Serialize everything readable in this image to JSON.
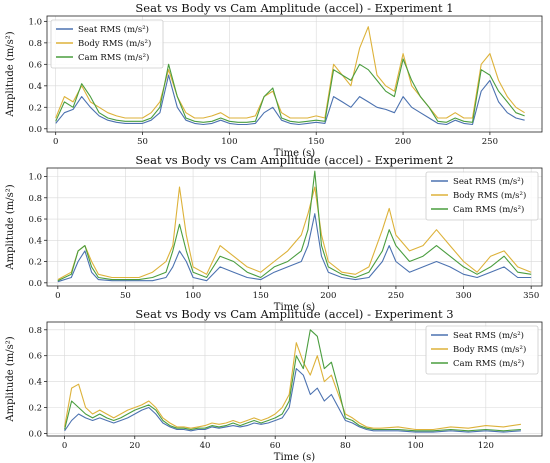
{
  "figure": {
    "colors": {
      "seat": "#4c72b0",
      "body": "#ddb23a",
      "cam": "#4a9d3f"
    },
    "legend_labels": [
      "Seat RMS (m/s²)",
      "Body RMS (m/s²)",
      "Cam RMS (m/s²)"
    ]
  },
  "chart_data": [
    {
      "type": "line",
      "title": "Seat vs Body vs Cam Amplitude (accel) - Experiment 1",
      "xlabel": "Time (s)",
      "ylabel": "Amplitude (m/s²)",
      "xlim": [
        -5,
        280
      ],
      "ylim": [
        -0.03,
        1.05
      ],
      "xticks": [
        0,
        50,
        100,
        150,
        200,
        250
      ],
      "yticks": [
        0.0,
        0.2,
        0.4,
        0.6,
        0.8,
        1.0
      ],
      "legend_position": "top-left",
      "grid": true,
      "series": [
        {
          "name": "Seat RMS (m/s²)",
          "x": [
            0,
            5,
            10,
            15,
            20,
            25,
            30,
            35,
            40,
            45,
            50,
            55,
            60,
            65,
            70,
            75,
            80,
            85,
            90,
            95,
            100,
            105,
            110,
            115,
            120,
            125,
            130,
            135,
            140,
            145,
            150,
            155,
            160,
            165,
            170,
            175,
            180,
            185,
            190,
            195,
            200,
            205,
            210,
            215,
            220,
            225,
            230,
            235,
            240,
            245,
            250,
            255,
            260,
            265,
            270
          ],
          "y": [
            0.05,
            0.15,
            0.18,
            0.3,
            0.2,
            0.12,
            0.08,
            0.06,
            0.05,
            0.05,
            0.05,
            0.08,
            0.15,
            0.5,
            0.2,
            0.08,
            0.05,
            0.04,
            0.05,
            0.08,
            0.05,
            0.04,
            0.04,
            0.05,
            0.15,
            0.2,
            0.08,
            0.05,
            0.04,
            0.05,
            0.06,
            0.05,
            0.3,
            0.25,
            0.2,
            0.3,
            0.25,
            0.2,
            0.18,
            0.15,
            0.3,
            0.2,
            0.15,
            0.1,
            0.05,
            0.04,
            0.08,
            0.05,
            0.04,
            0.35,
            0.45,
            0.25,
            0.15,
            0.1,
            0.08
          ]
        },
        {
          "name": "Body RMS (m/s²)",
          "x": [
            0,
            5,
            10,
            15,
            20,
            25,
            30,
            35,
            40,
            45,
            50,
            55,
            60,
            65,
            70,
            75,
            80,
            85,
            90,
            95,
            100,
            105,
            110,
            115,
            120,
            125,
            130,
            135,
            140,
            145,
            150,
            155,
            160,
            165,
            170,
            175,
            180,
            185,
            190,
            195,
            200,
            205,
            210,
            215,
            220,
            225,
            230,
            235,
            240,
            245,
            250,
            255,
            260,
            265,
            270
          ],
          "y": [
            0.1,
            0.3,
            0.25,
            0.4,
            0.25,
            0.2,
            0.15,
            0.12,
            0.1,
            0.1,
            0.1,
            0.15,
            0.25,
            0.55,
            0.3,
            0.15,
            0.1,
            0.1,
            0.12,
            0.15,
            0.1,
            0.1,
            0.1,
            0.12,
            0.3,
            0.35,
            0.15,
            0.1,
            0.1,
            0.1,
            0.12,
            0.1,
            0.6,
            0.5,
            0.4,
            0.75,
            0.95,
            0.5,
            0.4,
            0.35,
            0.7,
            0.4,
            0.3,
            0.2,
            0.1,
            0.1,
            0.15,
            0.1,
            0.1,
            0.6,
            0.7,
            0.45,
            0.3,
            0.2,
            0.15
          ]
        },
        {
          "name": "Cam RMS (m/s²)",
          "x": [
            0,
            5,
            10,
            15,
            20,
            25,
            30,
            35,
            40,
            45,
            50,
            55,
            60,
            65,
            70,
            75,
            80,
            85,
            90,
            95,
            100,
            105,
            110,
            115,
            120,
            125,
            130,
            135,
            140,
            145,
            150,
            155,
            160,
            165,
            170,
            175,
            180,
            185,
            190,
            195,
            200,
            205,
            210,
            215,
            220,
            225,
            230,
            235,
            240,
            245,
            250,
            255,
            260,
            265,
            270
          ],
          "y": [
            0.07,
            0.25,
            0.2,
            0.42,
            0.3,
            0.15,
            0.1,
            0.08,
            0.07,
            0.07,
            0.07,
            0.1,
            0.2,
            0.6,
            0.3,
            0.1,
            0.07,
            0.06,
            0.07,
            0.1,
            0.07,
            0.06,
            0.06,
            0.07,
            0.3,
            0.38,
            0.1,
            0.07,
            0.06,
            0.07,
            0.08,
            0.07,
            0.55,
            0.5,
            0.45,
            0.6,
            0.55,
            0.45,
            0.35,
            0.3,
            0.65,
            0.45,
            0.3,
            0.2,
            0.07,
            0.06,
            0.1,
            0.07,
            0.06,
            0.55,
            0.5,
            0.35,
            0.25,
            0.15,
            0.12
          ]
        }
      ]
    },
    {
      "type": "line",
      "title": "Seat vs Body vs Cam Amplitude (accel) - Experiment 2",
      "xlabel": "Time (s)",
      "ylabel": "Amplitude (m/s²)",
      "xlim": [
        -8,
        358
      ],
      "ylim": [
        -0.03,
        1.08
      ],
      "xticks": [
        0,
        50,
        100,
        150,
        200,
        250,
        300,
        350
      ],
      "yticks": [
        0.0,
        0.2,
        0.4,
        0.6,
        0.8,
        1.0
      ],
      "legend_position": "top-right",
      "grid": true,
      "series": [
        {
          "name": "Seat RMS (m/s²)",
          "x": [
            0,
            10,
            15,
            20,
            25,
            30,
            40,
            50,
            60,
            70,
            80,
            85,
            90,
            95,
            100,
            110,
            120,
            130,
            140,
            150,
            160,
            170,
            180,
            185,
            190,
            195,
            200,
            210,
            220,
            230,
            240,
            245,
            250,
            260,
            270,
            280,
            290,
            300,
            310,
            320,
            330,
            340,
            350
          ],
          "y": [
            0.01,
            0.05,
            0.2,
            0.3,
            0.1,
            0.03,
            0.02,
            0.02,
            0.02,
            0.02,
            0.05,
            0.15,
            0.3,
            0.2,
            0.05,
            0.02,
            0.15,
            0.1,
            0.05,
            0.03,
            0.1,
            0.15,
            0.2,
            0.35,
            0.65,
            0.25,
            0.1,
            0.05,
            0.03,
            0.05,
            0.2,
            0.35,
            0.2,
            0.1,
            0.15,
            0.2,
            0.15,
            0.08,
            0.05,
            0.1,
            0.15,
            0.05,
            0.05
          ]
        },
        {
          "name": "Body RMS (m/s²)",
          "x": [
            0,
            10,
            15,
            20,
            25,
            30,
            40,
            50,
            60,
            70,
            80,
            85,
            90,
            95,
            100,
            110,
            120,
            130,
            140,
            150,
            160,
            170,
            180,
            185,
            190,
            195,
            200,
            210,
            220,
            230,
            240,
            245,
            250,
            260,
            270,
            280,
            290,
            300,
            310,
            320,
            330,
            340,
            350
          ],
          "y": [
            0.03,
            0.1,
            0.3,
            0.35,
            0.2,
            0.08,
            0.05,
            0.05,
            0.05,
            0.1,
            0.2,
            0.35,
            0.9,
            0.45,
            0.15,
            0.08,
            0.35,
            0.25,
            0.15,
            0.1,
            0.2,
            0.3,
            0.45,
            0.65,
            0.9,
            0.45,
            0.2,
            0.1,
            0.08,
            0.15,
            0.5,
            0.7,
            0.45,
            0.3,
            0.35,
            0.5,
            0.35,
            0.2,
            0.1,
            0.25,
            0.3,
            0.15,
            0.1
          ]
        },
        {
          "name": "Cam RMS (m/s²)",
          "x": [
            0,
            10,
            15,
            20,
            25,
            30,
            40,
            50,
            60,
            70,
            80,
            85,
            90,
            95,
            100,
            110,
            120,
            130,
            140,
            150,
            160,
            170,
            180,
            185,
            190,
            195,
            200,
            210,
            220,
            230,
            240,
            245,
            250,
            260,
            270,
            280,
            290,
            300,
            310,
            320,
            330,
            340,
            350
          ],
          "y": [
            0.02,
            0.08,
            0.3,
            0.35,
            0.15,
            0.05,
            0.03,
            0.03,
            0.03,
            0.05,
            0.1,
            0.3,
            0.55,
            0.3,
            0.1,
            0.05,
            0.25,
            0.2,
            0.1,
            0.05,
            0.15,
            0.2,
            0.3,
            0.5,
            1.05,
            0.35,
            0.15,
            0.08,
            0.05,
            0.1,
            0.3,
            0.5,
            0.35,
            0.2,
            0.25,
            0.35,
            0.25,
            0.15,
            0.08,
            0.15,
            0.25,
            0.1,
            0.08
          ]
        }
      ]
    },
    {
      "type": "line",
      "title": "Seat vs Body vs Cam Amplitude (accel) - Experiment 3",
      "xlabel": "Time (s)",
      "ylabel": "Amplitude (m/s²)",
      "xlim": [
        -5,
        136
      ],
      "ylim": [
        -0.02,
        0.86
      ],
      "xticks": [
        0,
        20,
        40,
        60,
        80,
        100,
        120
      ],
      "yticks": [
        0.0,
        0.2,
        0.4,
        0.6,
        0.8
      ],
      "legend_position": "top-right",
      "grid": true,
      "series": [
        {
          "name": "Seat RMS (m/s²)",
          "x": [
            0,
            2,
            4,
            6,
            8,
            10,
            12,
            14,
            16,
            18,
            20,
            22,
            24,
            26,
            28,
            30,
            32,
            34,
            36,
            38,
            40,
            42,
            44,
            46,
            48,
            50,
            52,
            54,
            56,
            58,
            60,
            62,
            64,
            66,
            68,
            70,
            72,
            74,
            76,
            78,
            80,
            82,
            84,
            86,
            88,
            90,
            95,
            100,
            105,
            110,
            115,
            120,
            125,
            130
          ],
          "y": [
            0.02,
            0.1,
            0.15,
            0.12,
            0.1,
            0.12,
            0.1,
            0.08,
            0.1,
            0.12,
            0.15,
            0.18,
            0.2,
            0.15,
            0.08,
            0.05,
            0.03,
            0.03,
            0.02,
            0.03,
            0.03,
            0.05,
            0.04,
            0.05,
            0.06,
            0.05,
            0.06,
            0.08,
            0.07,
            0.08,
            0.1,
            0.12,
            0.2,
            0.5,
            0.45,
            0.3,
            0.35,
            0.25,
            0.3,
            0.2,
            0.1,
            0.08,
            0.05,
            0.03,
            0.02,
            0.02,
            0.02,
            0.01,
            0.01,
            0.02,
            0.01,
            0.02,
            0.01,
            0.02
          ]
        },
        {
          "name": "Body RMS (m/s²)",
          "x": [
            0,
            2,
            4,
            6,
            8,
            10,
            12,
            14,
            16,
            18,
            20,
            22,
            24,
            26,
            28,
            30,
            32,
            34,
            36,
            38,
            40,
            42,
            44,
            46,
            48,
            50,
            52,
            54,
            56,
            58,
            60,
            62,
            64,
            66,
            68,
            70,
            72,
            74,
            76,
            78,
            80,
            82,
            84,
            86,
            88,
            90,
            95,
            100,
            105,
            110,
            115,
            120,
            125,
            130
          ],
          "y": [
            0.05,
            0.35,
            0.38,
            0.2,
            0.15,
            0.18,
            0.15,
            0.12,
            0.15,
            0.18,
            0.2,
            0.22,
            0.25,
            0.2,
            0.12,
            0.08,
            0.05,
            0.05,
            0.04,
            0.05,
            0.06,
            0.08,
            0.07,
            0.08,
            0.1,
            0.08,
            0.1,
            0.12,
            0.1,
            0.12,
            0.15,
            0.2,
            0.3,
            0.7,
            0.55,
            0.45,
            0.6,
            0.4,
            0.45,
            0.3,
            0.15,
            0.12,
            0.08,
            0.05,
            0.04,
            0.04,
            0.05,
            0.03,
            0.03,
            0.05,
            0.04,
            0.06,
            0.05,
            0.07
          ]
        },
        {
          "name": "Cam RMS (m/s²)",
          "x": [
            0,
            2,
            4,
            6,
            8,
            10,
            12,
            14,
            16,
            18,
            20,
            22,
            24,
            26,
            28,
            30,
            32,
            34,
            36,
            38,
            40,
            42,
            44,
            46,
            48,
            50,
            52,
            54,
            56,
            58,
            60,
            62,
            64,
            66,
            68,
            70,
            72,
            74,
            76,
            78,
            80,
            82,
            84,
            86,
            88,
            90,
            95,
            100,
            105,
            110,
            115,
            120,
            125,
            130
          ],
          "y": [
            0.03,
            0.25,
            0.2,
            0.15,
            0.12,
            0.15,
            0.12,
            0.1,
            0.12,
            0.15,
            0.18,
            0.2,
            0.22,
            0.18,
            0.1,
            0.06,
            0.04,
            0.04,
            0.03,
            0.04,
            0.04,
            0.06,
            0.05,
            0.06,
            0.08,
            0.06,
            0.08,
            0.1,
            0.08,
            0.1,
            0.12,
            0.15,
            0.25,
            0.6,
            0.5,
            0.8,
            0.75,
            0.5,
            0.55,
            0.35,
            0.12,
            0.1,
            0.06,
            0.04,
            0.03,
            0.03,
            0.03,
            0.02,
            0.02,
            0.03,
            0.02,
            0.03,
            0.02,
            0.03
          ]
        }
      ]
    }
  ]
}
